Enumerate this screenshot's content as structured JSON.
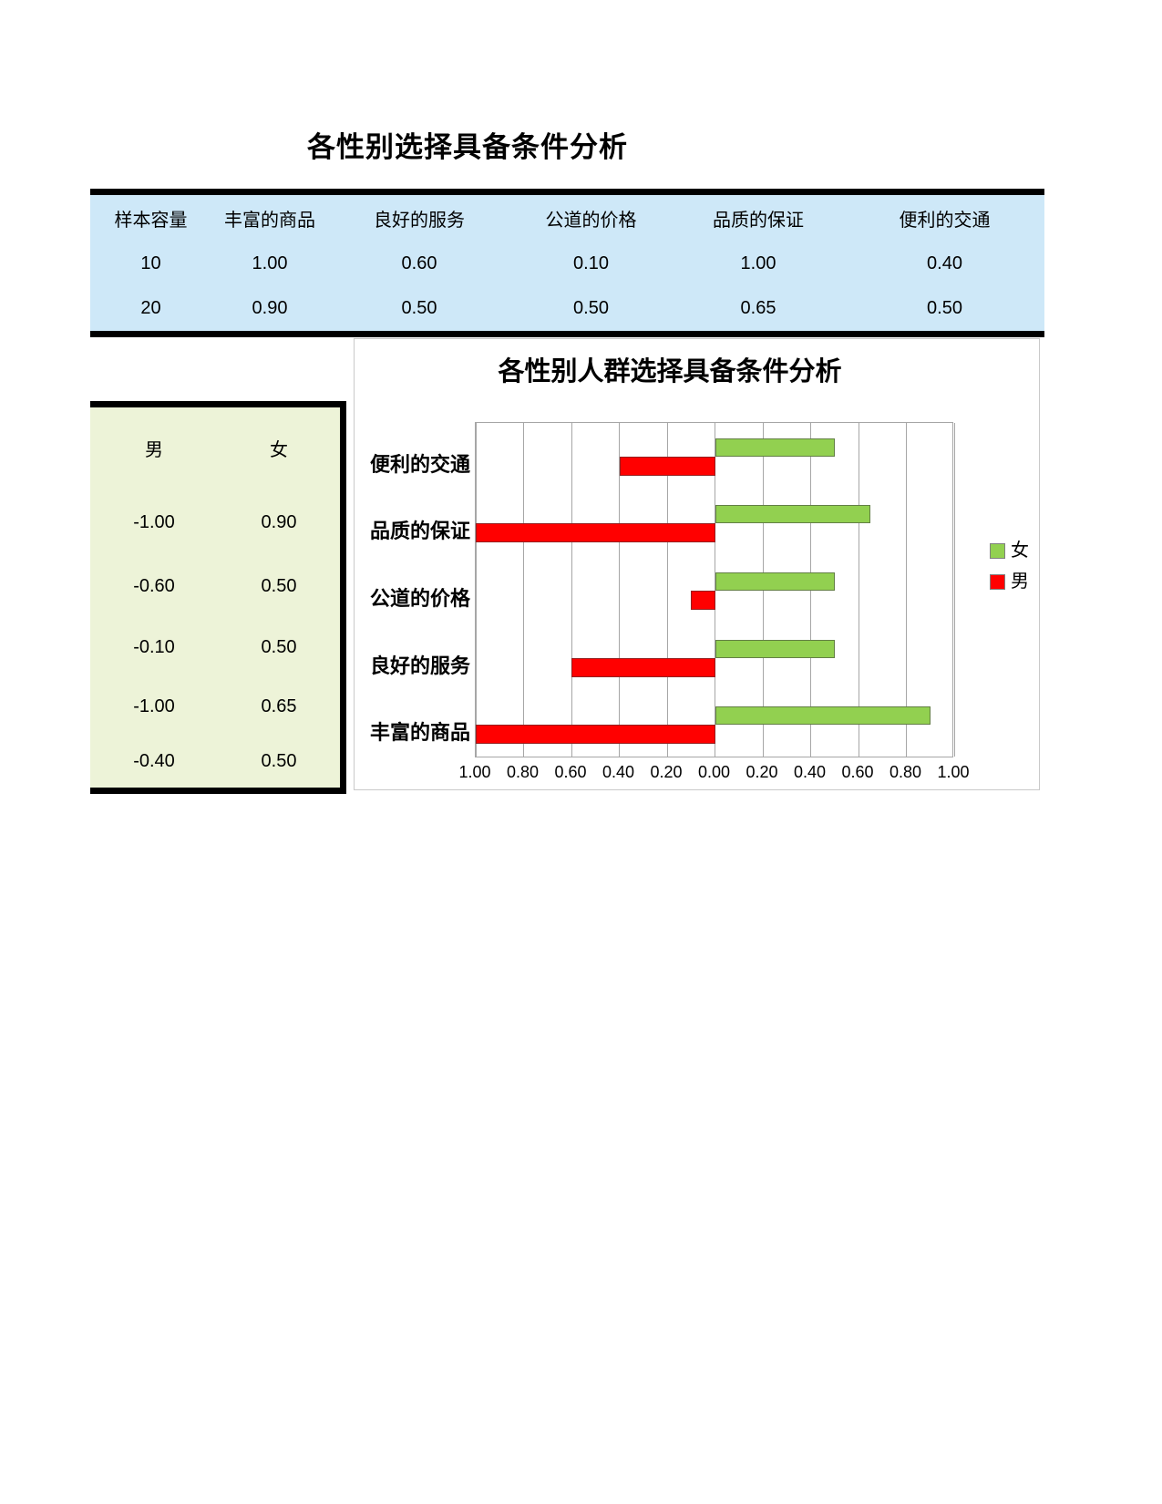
{
  "page": {
    "title": "各性别选择具备条件分析"
  },
  "top_table": {
    "headers": [
      "样本容量",
      "丰富的商品",
      "良好的服务",
      "公道的价格",
      "品质的保证",
      "便利的交通"
    ],
    "rows": [
      [
        "10",
        "1.00",
        "0.60",
        "0.10",
        "1.00",
        "0.40"
      ],
      [
        "20",
        "0.90",
        "0.50",
        "0.50",
        "0.65",
        "0.50"
      ]
    ]
  },
  "gender_table": {
    "headers": [
      "男",
      "女"
    ],
    "rows": [
      [
        "-1.00",
        "0.90"
      ],
      [
        "-0.60",
        "0.50"
      ],
      [
        "-0.10",
        "0.50"
      ],
      [
        "-1.00",
        "0.65"
      ],
      [
        "-0.40",
        "0.50"
      ]
    ]
  },
  "chart_data": {
    "type": "bar",
    "orientation": "horizontal",
    "title": "各性别人群选择具备条件分析",
    "categories": [
      "便利的交通",
      "品质的保证",
      "公道的价格",
      "良好的服务",
      "丰富的商品"
    ],
    "series": [
      {
        "name": "女",
        "color": "#92d050",
        "values": [
          0.5,
          0.65,
          0.5,
          0.5,
          0.9
        ]
      },
      {
        "name": "男",
        "color": "#ff0000",
        "values": [
          -0.4,
          -1.0,
          -0.1,
          -0.6,
          -1.0
        ]
      }
    ],
    "xlim": [
      -1.0,
      1.0
    ],
    "x_tick_step": 0.2,
    "x_tick_labels": [
      "1.00",
      "0.80",
      "0.60",
      "0.40",
      "0.20",
      "0.00",
      "0.20",
      "0.40",
      "0.60",
      "0.80",
      "1.00"
    ],
    "grid": true,
    "legend_position": "right",
    "legend": [
      "女",
      "男"
    ]
  },
  "colors": {
    "female_series": "#92d050",
    "male_series": "#ff0000",
    "top_table_fill": "#cee8f8",
    "gender_table_fill": "#edf3d8",
    "gridline": "#a6a6a6",
    "border": "#000000"
  }
}
